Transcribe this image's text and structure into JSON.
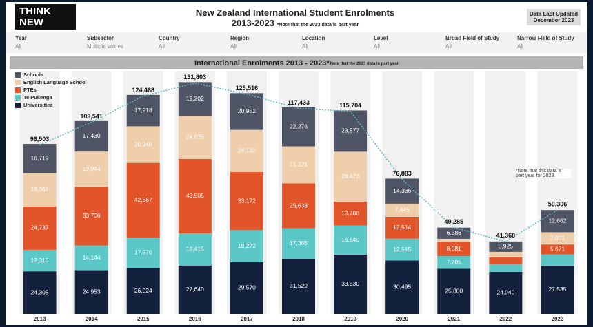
{
  "header": {
    "logo": [
      "THINK",
      "NEW"
    ],
    "title": "New Zealand International Student Enrolments",
    "subtitle": "2013-2023",
    "note": "*Note that the 2023 data is part year",
    "updated": [
      "Data Last Updated",
      "December 2023"
    ]
  },
  "filters": [
    {
      "label": "Year",
      "value": "All"
    },
    {
      "label": "Subsector",
      "value": "Multiple values"
    },
    {
      "label": "Country",
      "value": "All"
    },
    {
      "label": "Region",
      "value": "All"
    },
    {
      "label": "Location",
      "value": "All"
    },
    {
      "label": "Level",
      "value": "All"
    },
    {
      "label": "Broad Field of Study",
      "value": "All"
    },
    {
      "label": "Narrow Field of Study",
      "value": "All"
    }
  ],
  "chart_data": {
    "type": "stacked_bar",
    "title": "International Enrolments 2013 - 2023*",
    "title_note": "Note that the 2023 data is part year",
    "annotation": "*Note that this data is part year for 2023.",
    "categories": [
      "2013",
      "2014",
      "2015",
      "2016",
      "2017",
      "2018",
      "2019",
      "2020",
      "2021",
      "2022",
      "2023"
    ],
    "ylim": [
      0,
      140000
    ],
    "series": [
      {
        "name": "Schools",
        "color": "#4f5565",
        "values": [
          16719,
          17430,
          17918,
          19202,
          20952,
          22276,
          23577,
          14336,
          6386,
          5925,
          12662
        ],
        "value_labels": [
          "16,719",
          "17,430",
          "17,918",
          "19,202",
          "20,952",
          "22,276",
          "23,577",
          "14,336",
          "6,386",
          "5,925",
          "12,662"
        ]
      },
      {
        "name": "English Language School",
        "color": "#efceab",
        "values": [
          19058,
          19944,
          20940,
          24635,
          24132,
          21221,
          28473,
          7445,
          1813,
          3195,
          7001
        ],
        "value_labels": [
          "19,058",
          "19,944",
          "20,940",
          "24,635",
          "24,132",
          "21,221",
          "28,473",
          "7,445",
          null,
          null,
          "7,001"
        ]
      },
      {
        "name": "PTEs",
        "color": "#e2542a",
        "values": [
          24737,
          33706,
          42667,
          42505,
          33172,
          25638,
          13708,
          12514,
          8081,
          4000,
          5671
        ],
        "value_labels": [
          "24,737",
          "33,706",
          "42,667",
          "42,505",
          "33,172",
          "25,638",
          "13,708",
          "12,514",
          "8,081",
          null,
          "5,671"
        ]
      },
      {
        "name": "Te Pukenga",
        "color": "#5cc7c7",
        "values": [
          12316,
          14144,
          17570,
          18415,
          18272,
          17365,
          16640,
          12515,
          7205,
          4200,
          6437
        ],
        "value_labels": [
          "12,316",
          "14,144",
          "17,570",
          "18,415",
          "18,272",
          "17,365",
          "16,640",
          "12,515",
          "7,205",
          null,
          null
        ]
      },
      {
        "name": "Universities",
        "color": "#14213d",
        "values": [
          24305,
          24953,
          26024,
          27640,
          29570,
          31529,
          33830,
          30495,
          25800,
          24040,
          27535
        ],
        "value_labels": [
          "24,305",
          "24,953",
          "26,024",
          "27,640",
          "29,570",
          "31,529",
          "33,830",
          "30,495",
          "25,800",
          "24,040",
          "27,535"
        ]
      }
    ],
    "totals": {
      "color": "#5bb8c2",
      "values": [
        96503,
        109541,
        124468,
        131803,
        125516,
        117433,
        115704,
        76883,
        49285,
        41360,
        59306
      ],
      "value_labels": [
        "96,503",
        "109,541",
        "124,468",
        "131,803",
        "125,516",
        "117,433",
        "115,704",
        "76,883",
        "49,285",
        "41,360",
        "59,306"
      ]
    }
  }
}
